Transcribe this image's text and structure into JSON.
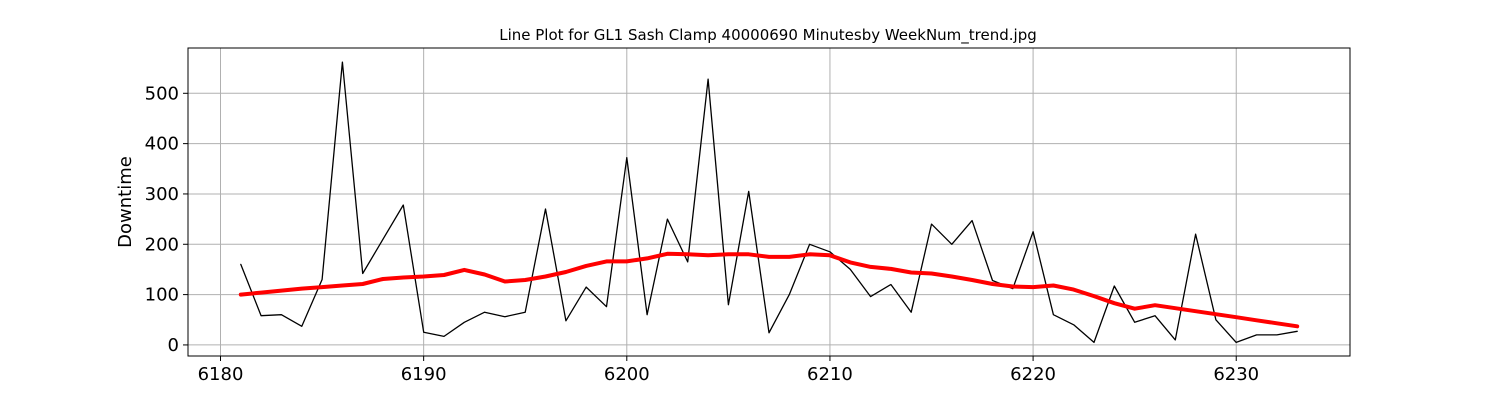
{
  "chart_data": {
    "type": "line",
    "title": "Line Plot for GL1 Sash Clamp 40000690 Minutesby WeekNum_trend.jpg",
    "xlabel": "",
    "ylabel": "Downtime",
    "xlim": [
      6178.4,
      6235.6
    ],
    "ylim": [
      -22,
      590
    ],
    "xticks": [
      6180,
      6190,
      6200,
      6210,
      6220,
      6230
    ],
    "yticks": [
      0,
      100,
      200,
      300,
      400,
      500
    ],
    "xtick_labels": [
      "6180",
      "6190",
      "6200",
      "6210",
      "6220",
      "6230"
    ],
    "ytick_labels": [
      "0",
      "100",
      "200",
      "300",
      "400",
      "500"
    ],
    "grid": true,
    "legend": "none",
    "colors": {
      "raw": "#000000",
      "trend": "#ff0000",
      "grid": "#b0b0b0"
    },
    "series": [
      {
        "x": [
          6181,
          6182,
          6183,
          6184,
          6185,
          6186,
          6187,
          6188,
          6189,
          6190,
          6191,
          6192,
          6193,
          6194,
          6195,
          6196,
          6197,
          6198,
          6199,
          6200,
          6201,
          6202,
          6203,
          6204,
          6205,
          6206,
          6207,
          6208,
          6209,
          6210,
          6211,
          6212,
          6213,
          6214,
          6215,
          6216,
          6217,
          6218,
          6219,
          6220,
          6221,
          6222,
          6223,
          6224,
          6225,
          6226,
          6227,
          6228,
          6229,
          6230,
          6231,
          6232,
          6233
        ],
        "y": [
          160,
          58,
          60,
          37,
          130,
          562,
          142,
          210,
          278,
          25,
          17,
          45,
          65,
          56,
          65,
          270,
          48,
          115,
          76,
          372,
          60,
          250,
          165,
          528,
          80,
          305,
          24,
          100,
          200,
          185,
          150,
          96,
          120,
          65,
          240,
          200,
          247,
          128,
          112,
          225,
          60,
          40,
          5,
          117,
          45,
          58,
          10,
          220,
          50,
          5,
          20,
          20,
          27
        ]
      },
      {
        "x": [
          6181,
          6182,
          6183,
          6184,
          6185,
          6186,
          6187,
          6188,
          6189,
          6190,
          6191,
          6192,
          6193,
          6194,
          6195,
          6196,
          6197,
          6198,
          6199,
          6200,
          6201,
          6202,
          6203,
          6204,
          6205,
          6206,
          6207,
          6208,
          6209,
          6210,
          6211,
          6212,
          6213,
          6214,
          6215,
          6216,
          6217,
          6218,
          6219,
          6220,
          6221,
          6222,
          6223,
          6224,
          6225,
          6226,
          6227,
          6228,
          6229,
          6230,
          6231,
          6232,
          6233
        ],
        "y": [
          100,
          104,
          108,
          112,
          115,
          118,
          121,
          131,
          134,
          136,
          139,
          149,
          140,
          126,
          129,
          136,
          145,
          157,
          166,
          166,
          172,
          181,
          180,
          178,
          180,
          180,
          175,
          175,
          180,
          178,
          164,
          155,
          151,
          144,
          142,
          136,
          129,
          121,
          116,
          115,
          118,
          110,
          97,
          83,
          72,
          79,
          73,
          67,
          61,
          55,
          49,
          43,
          37
        ]
      }
    ]
  }
}
